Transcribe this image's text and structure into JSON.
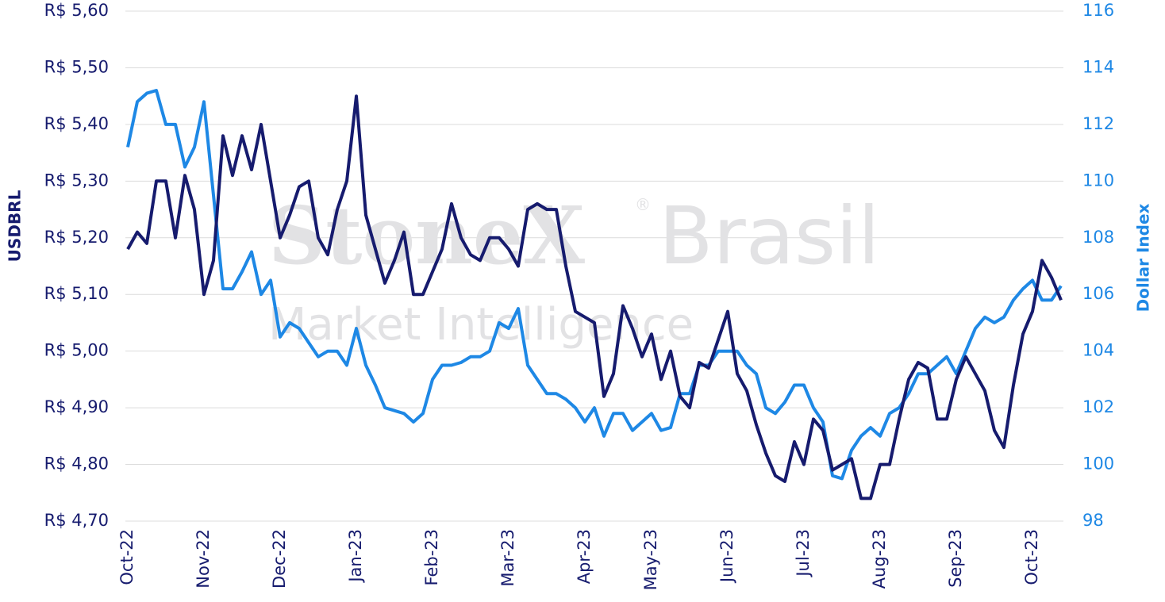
{
  "chart_data": {
    "type": "line",
    "watermark": [
      "StoneX",
      "®",
      "Brasil",
      "Market Intelligence"
    ],
    "categories": [
      "Oct-22",
      null,
      null,
      null,
      null,
      null,
      null,
      null,
      "Nov-22",
      null,
      null,
      null,
      null,
      null,
      null,
      null,
      "Dec-22",
      null,
      null,
      null,
      null,
      null,
      null,
      null,
      "Jan-23",
      null,
      null,
      null,
      null,
      null,
      null,
      null,
      "Feb-23",
      null,
      null,
      null,
      null,
      null,
      null,
      null,
      "Mar-23",
      null,
      null,
      null,
      null,
      null,
      null,
      null,
      "Apr-23",
      null,
      null,
      null,
      null,
      null,
      null,
      "May-23",
      null,
      null,
      null,
      null,
      null,
      null,
      null,
      "Jun-23",
      null,
      null,
      null,
      null,
      null,
      null,
      null,
      "Jul-23",
      null,
      null,
      null,
      null,
      null,
      null,
      null,
      "Aug-23",
      null,
      null,
      null,
      null,
      null,
      null,
      null,
      "Sep-23",
      null,
      null,
      null,
      null,
      null,
      null,
      null,
      "Oct-23",
      null,
      null,
      null
    ],
    "series": [
      {
        "name": "USDBRL",
        "color": "#161b6e",
        "axis": "y",
        "values": [
          5.18,
          5.21,
          5.19,
          5.3,
          5.3,
          5.2,
          5.31,
          5.25,
          5.1,
          5.16,
          5.38,
          5.31,
          5.38,
          5.32,
          5.4,
          5.3,
          5.2,
          5.24,
          5.29,
          5.3,
          5.2,
          5.17,
          5.25,
          5.3,
          5.45,
          5.24,
          5.18,
          5.12,
          5.16,
          5.21,
          5.1,
          5.1,
          5.14,
          5.18,
          5.26,
          5.2,
          5.17,
          5.16,
          5.2,
          5.2,
          5.18,
          5.15,
          5.25,
          5.26,
          5.25,
          5.25,
          5.15,
          5.07,
          5.06,
          5.05,
          4.92,
          4.96,
          5.08,
          5.04,
          4.99,
          5.03,
          4.95,
          5.0,
          4.92,
          4.9,
          4.98,
          4.97,
          5.02,
          5.07,
          4.96,
          4.93,
          4.87,
          4.82,
          4.78,
          4.77,
          4.84,
          4.8,
          4.88,
          4.86,
          4.79,
          4.8,
          4.81,
          4.74,
          4.74,
          4.8,
          4.8,
          4.88,
          4.95,
          4.98,
          4.97,
          4.88,
          4.88,
          4.95,
          4.99,
          4.96,
          4.93,
          4.86,
          4.83,
          4.94,
          5.03,
          5.07,
          5.16,
          5.13,
          5.09
        ]
      },
      {
        "name": "Dollar Index",
        "color": "#1e88e5",
        "axis": "y2",
        "values": [
          111.2,
          112.8,
          113.1,
          113.2,
          112.0,
          112.0,
          110.5,
          111.2,
          112.8,
          109.5,
          106.2,
          106.2,
          106.8,
          107.5,
          106.0,
          106.5,
          104.5,
          105.0,
          104.8,
          104.3,
          103.8,
          104.0,
          104.0,
          103.5,
          104.8,
          103.5,
          102.8,
          102.0,
          101.9,
          101.8,
          101.5,
          101.8,
          103.0,
          103.5,
          103.5,
          103.6,
          103.8,
          103.8,
          104.0,
          105.0,
          104.8,
          105.5,
          103.5,
          103.0,
          102.5,
          102.5,
          102.3,
          102.0,
          101.5,
          102.0,
          101.0,
          101.8,
          101.8,
          101.2,
          101.5,
          101.8,
          101.2,
          101.3,
          102.5,
          102.5,
          103.5,
          103.5,
          104.0,
          104.0,
          104.0,
          103.5,
          103.2,
          102.0,
          101.8,
          102.2,
          102.8,
          102.8,
          102.0,
          101.5,
          99.6,
          99.5,
          100.5,
          101.0,
          101.3,
          101.0,
          101.8,
          102.0,
          102.5,
          103.2,
          103.2,
          103.5,
          103.8,
          103.2,
          104.0,
          104.8,
          105.2,
          105.0,
          105.2,
          105.8,
          106.2,
          106.5,
          105.8,
          105.8,
          106.3
        ]
      }
    ],
    "ylim": [
      4.7,
      5.6
    ],
    "yticks": [
      {
        "value": 4.7,
        "label": "R$ 4,70"
      },
      {
        "value": 4.8,
        "label": "R$ 4,80"
      },
      {
        "value": 4.9,
        "label": "R$ 4,90"
      },
      {
        "value": 5.0,
        "label": "R$ 5,00"
      },
      {
        "value": 5.1,
        "label": "R$ 5,10"
      },
      {
        "value": 5.2,
        "label": "R$ 5,20"
      },
      {
        "value": 5.3,
        "label": "R$ 5,30"
      },
      {
        "value": 5.4,
        "label": "R$ 5,40"
      },
      {
        "value": 5.5,
        "label": "R$ 5,50"
      },
      {
        "value": 5.6,
        "label": "R$ 5,60"
      }
    ],
    "y2lim": [
      98,
      116
    ],
    "y2ticks": [
      98,
      100,
      102,
      104,
      106,
      108,
      110,
      112,
      114,
      116
    ],
    "grid": true
  }
}
